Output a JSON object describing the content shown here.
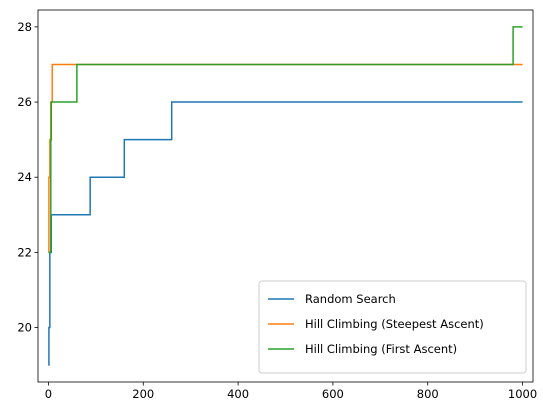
{
  "chart_data": {
    "type": "line",
    "title": "",
    "xlabel": "",
    "ylabel": "",
    "xlim": [
      -22,
      1022
    ],
    "ylim": [
      18.55,
      28.45
    ],
    "xticks": [
      0,
      200,
      400,
      600,
      800,
      1000
    ],
    "yticks": [
      20,
      22,
      24,
      26,
      28
    ],
    "legend_position": "lower right",
    "grid": false,
    "series": [
      {
        "name": "Random Search",
        "color": "#1f77b4",
        "step": true,
        "x": [
          0,
          1,
          2,
          3,
          6,
          88,
          160,
          260,
          1000
        ],
        "y": [
          19,
          20,
          20,
          22,
          23,
          24,
          25,
          26,
          26
        ]
      },
      {
        "name": "Hill Climbing (Steepest Ascent)",
        "color": "#ff7f0e",
        "step": true,
        "x": [
          0,
          1,
          3,
          5,
          8,
          1000
        ],
        "y": [
          22,
          24,
          25,
          26,
          27,
          27
        ]
      },
      {
        "name": "Hill Climbing (First Ascent)",
        "color": "#2ca02c",
        "step": true,
        "x": [
          0,
          1,
          5,
          6,
          58,
          60,
          978,
          980,
          1000
        ],
        "y": [
          22,
          22,
          25,
          26,
          26,
          27,
          27,
          28,
          28
        ]
      }
    ]
  }
}
